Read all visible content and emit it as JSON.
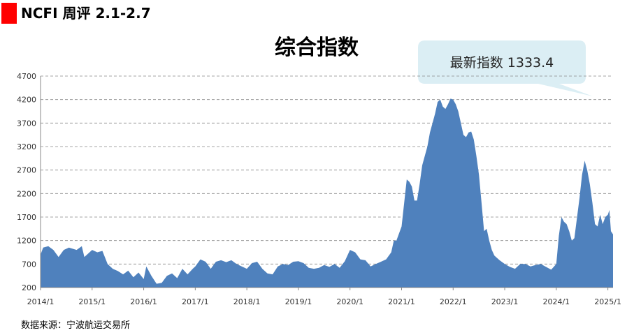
{
  "header": "NCFI 周评 2.1-2.7",
  "source": "数据来源：宁波航运交易所",
  "chart_data": {
    "type": "area",
    "title": "综合指数",
    "annotation": "最新指数 1333.4",
    "color": "#4f81bd",
    "grid": true,
    "xlim": [
      2014,
      2025.1
    ],
    "ylim": [
      200,
      4700
    ],
    "yticks": [
      200,
      700,
      1200,
      1700,
      2200,
      2700,
      3200,
      3700,
      4200,
      4700
    ],
    "xticks": [
      {
        "value": 2014,
        "label": "2014/1"
      },
      {
        "value": 2015,
        "label": "2015/1"
      },
      {
        "value": 2016,
        "label": "2016/1"
      },
      {
        "value": 2017,
        "label": "2017/1"
      },
      {
        "value": 2018,
        "label": "2018/1"
      },
      {
        "value": 2019,
        "label": "2019/1"
      },
      {
        "value": 2020,
        "label": "2020/1"
      },
      {
        "value": 2021,
        "label": "2021/1"
      },
      {
        "value": 2022,
        "label": "2022/1"
      },
      {
        "value": 2023,
        "label": "2023/1"
      },
      {
        "value": 2024,
        "label": "2024/1"
      },
      {
        "value": 2025,
        "label": "2025/1"
      }
    ],
    "x": [
      2014.0,
      2014.05,
      2014.15,
      2014.25,
      2014.35,
      2014.45,
      2014.55,
      2014.7,
      2014.8,
      2014.85,
      2014.95,
      2015.0,
      2015.1,
      2015.2,
      2015.3,
      2015.4,
      2015.5,
      2015.6,
      2015.7,
      2015.8,
      2015.9,
      2016.0,
      2016.05,
      2016.15,
      2016.25,
      2016.35,
      2016.45,
      2016.55,
      2016.65,
      2016.75,
      2016.85,
      2016.95,
      2017.0,
      2017.1,
      2017.2,
      2017.3,
      2017.4,
      2017.5,
      2017.6,
      2017.7,
      2017.8,
      2017.9,
      2018.0,
      2018.1,
      2018.2,
      2018.3,
      2018.4,
      2018.5,
      2018.6,
      2018.7,
      2018.8,
      2018.9,
      2019.0,
      2019.1,
      2019.2,
      2019.3,
      2019.4,
      2019.5,
      2019.6,
      2019.7,
      2019.8,
      2019.9,
      2020.0,
      2020.1,
      2020.2,
      2020.3,
      2020.4,
      2020.5,
      2020.6,
      2020.7,
      2020.8,
      2020.85,
      2020.9,
      2021.0,
      2021.05,
      2021.1,
      2021.15,
      2021.2,
      2021.25,
      2021.3,
      2021.35,
      2021.4,
      2021.5,
      2021.55,
      2021.6,
      2021.65,
      2021.7,
      2021.75,
      2021.8,
      2021.85,
      2021.9,
      2021.95,
      2022.0,
      2022.05,
      2022.1,
      2022.15,
      2022.2,
      2022.25,
      2022.3,
      2022.35,
      2022.4,
      2022.45,
      2022.5,
      2022.55,
      2022.6,
      2022.65,
      2022.7,
      2022.75,
      2022.8,
      2022.9,
      2023.0,
      2023.1,
      2023.2,
      2023.3,
      2023.4,
      2023.5,
      2023.6,
      2023.7,
      2023.8,
      2023.9,
      2024.0,
      2024.05,
      2024.1,
      2024.15,
      2024.2,
      2024.25,
      2024.3,
      2024.35,
      2024.45,
      2024.5,
      2024.55,
      2024.6,
      2024.65,
      2024.7,
      2024.75,
      2024.8,
      2024.85,
      2024.9,
      2024.95,
      2025.0,
      2025.03,
      2025.06,
      2025.1
    ],
    "values": [
      900,
      1050,
      1080,
      1000,
      850,
      1000,
      1050,
      1000,
      1080,
      850,
      950,
      1000,
      950,
      980,
      700,
      600,
      550,
      480,
      560,
      420,
      520,
      380,
      650,
      450,
      280,
      300,
      450,
      500,
      400,
      600,
      480,
      600,
      650,
      800,
      750,
      600,
      750,
      780,
      740,
      780,
      700,
      650,
      600,
      720,
      750,
      600,
      500,
      480,
      650,
      700,
      680,
      750,
      760,
      720,
      620,
      600,
      620,
      680,
      640,
      700,
      620,
      760,
      1000,
      950,
      800,
      780,
      650,
      700,
      750,
      800,
      950,
      1200,
      1200,
      1500,
      2000,
      2500,
      2450,
      2350,
      2050,
      2050,
      2400,
      2800,
      3200,
      3500,
      3700,
      3900,
      4150,
      4200,
      4050,
      4000,
      4100,
      4220,
      4200,
      4100,
      3950,
      3700,
      3450,
      3400,
      3500,
      3520,
      3350,
      3000,
      2600,
      2000,
      1400,
      1450,
      1200,
      1000,
      880,
      780,
      700,
      640,
      600,
      700,
      700,
      650,
      680,
      700,
      640,
      580,
      700,
      1300,
      1700,
      1600,
      1550,
      1400,
      1200,
      1250,
      2100,
      2600,
      2900,
      2700,
      2400,
      2000,
      1550,
      1500,
      1750,
      1550,
      1700,
      1750,
      1850,
      1400,
      1333.4
    ]
  }
}
